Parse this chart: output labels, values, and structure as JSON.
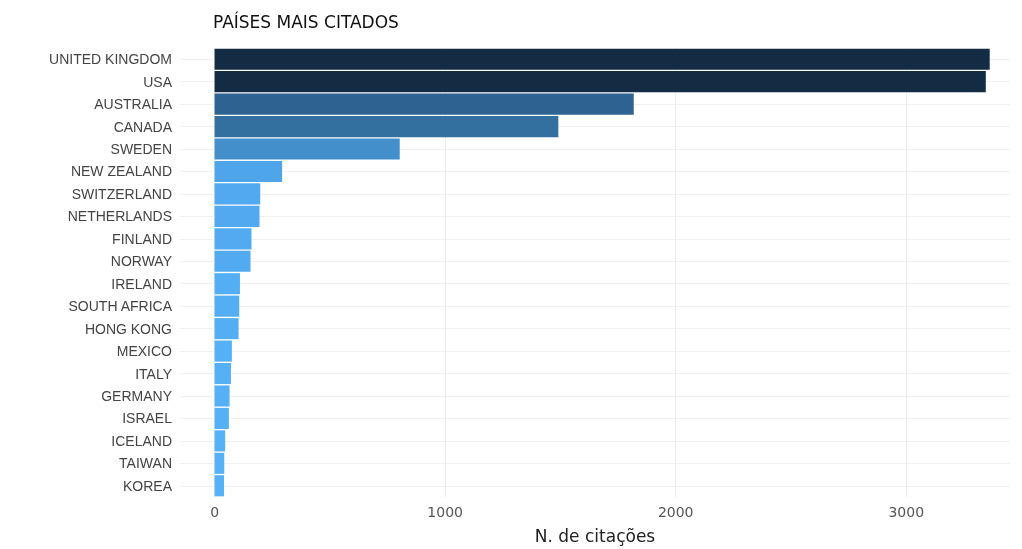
{
  "chart_data": {
    "type": "bar",
    "orientation": "horizontal",
    "title": "PAÍSES MAIS CITADOS",
    "xlabel": "N. de citações",
    "categories": [
      "UNITED KINGDOM",
      "USA",
      "AUSTRALIA",
      "CANADA",
      "SWEDEN",
      "NEW ZEALAND",
      "SWITZERLAND",
      "NETHERLANDS",
      "FINLAND",
      "NORWAY",
      "IRELAND",
      "SOUTH AFRICA",
      "HONG KONG",
      "MEXICO",
      "ITALY",
      "GERMANY",
      "ISRAEL",
      "ICELAND",
      "TAIWAN",
      "KOREA"
    ],
    "values": [
      3362,
      3345,
      1818,
      1491,
      803,
      293,
      198,
      195,
      160,
      156,
      110,
      107,
      104,
      75,
      71,
      65,
      62,
      46,
      42,
      41
    ],
    "colors": [
      "#132b43",
      "#132b43",
      "#2e6391",
      "#33709f",
      "#428fcb",
      "#4ea5e9",
      "#51aaef",
      "#51aaef",
      "#52abf0",
      "#52abf0",
      "#54aef3",
      "#54aef3",
      "#54aef3",
      "#55b0f5",
      "#55b0f5",
      "#55b0f5",
      "#55b0f5",
      "#56b1f7",
      "#56b1f7",
      "#56b1f7"
    ],
    "xlim": [
      -150,
      3450
    ],
    "xticks": [
      0,
      1000,
      2000,
      3000
    ],
    "grid": true
  }
}
